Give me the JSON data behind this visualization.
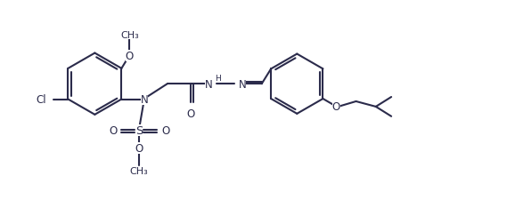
{
  "bg_color": "#ffffff",
  "line_color": "#2b2b4b",
  "line_width": 1.5,
  "font_size": 8.5,
  "fig_width": 5.69,
  "fig_height": 2.26,
  "dpi": 100,
  "xlim": [
    0,
    11.5
  ],
  "ylim": [
    0,
    4.52
  ]
}
